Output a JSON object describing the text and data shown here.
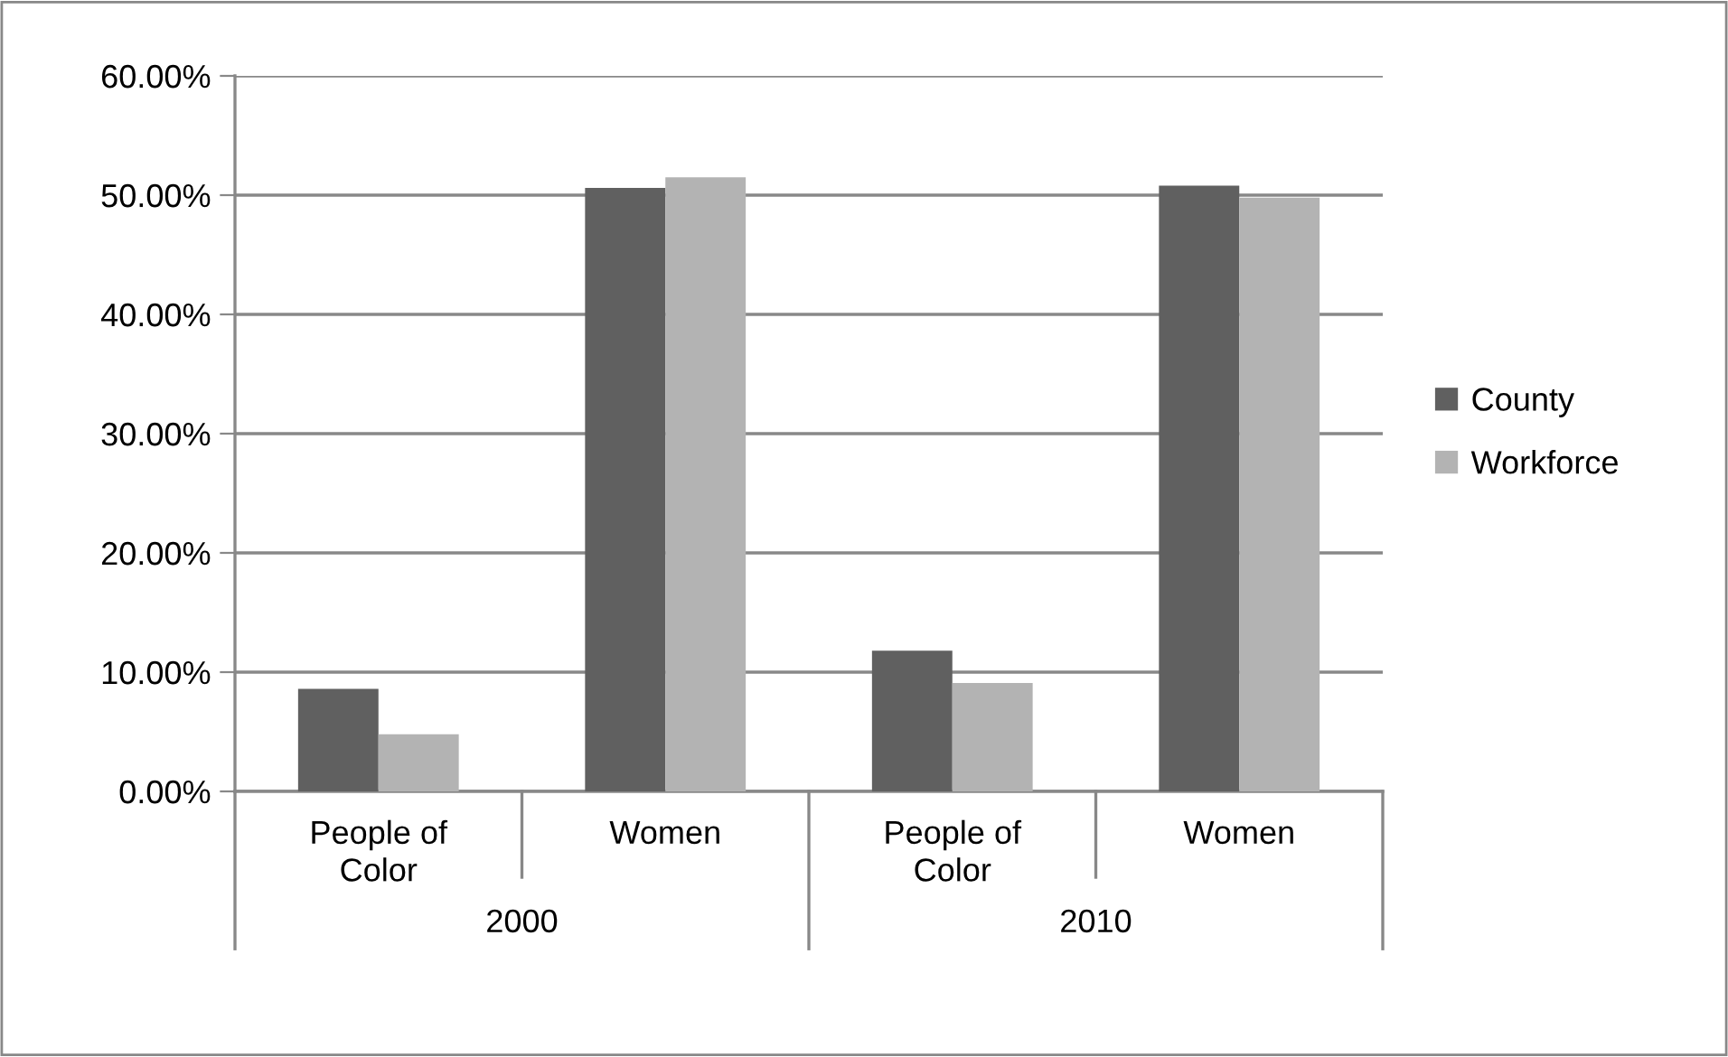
{
  "chart_data": {
    "type": "bar",
    "categories": [
      "People of\nColor",
      "Women",
      "People of\nColor",
      "Women"
    ],
    "annotations": [
      "2000",
      "2010"
    ],
    "series": [
      {
        "name": "County",
        "color": "#606060",
        "values": [
          8.6,
          50.6,
          11.8,
          50.8
        ]
      },
      {
        "name": "Workforce",
        "color": "#b3b3b3",
        "values": [
          4.8,
          51.5,
          9.1,
          49.8
        ]
      }
    ],
    "ylim": [
      0,
      60
    ],
    "yticks": [
      {
        "value": 0,
        "label": "0.00%"
      },
      {
        "value": 10,
        "label": "10.00%"
      },
      {
        "value": 20,
        "label": "20.00%"
      },
      {
        "value": 30,
        "label": "30.00%"
      },
      {
        "value": 40,
        "label": "40.00%"
      },
      {
        "value": 50,
        "label": "50.00%"
      },
      {
        "value": 60,
        "label": "60.00%"
      }
    ],
    "grid": "y",
    "legend": "right"
  }
}
